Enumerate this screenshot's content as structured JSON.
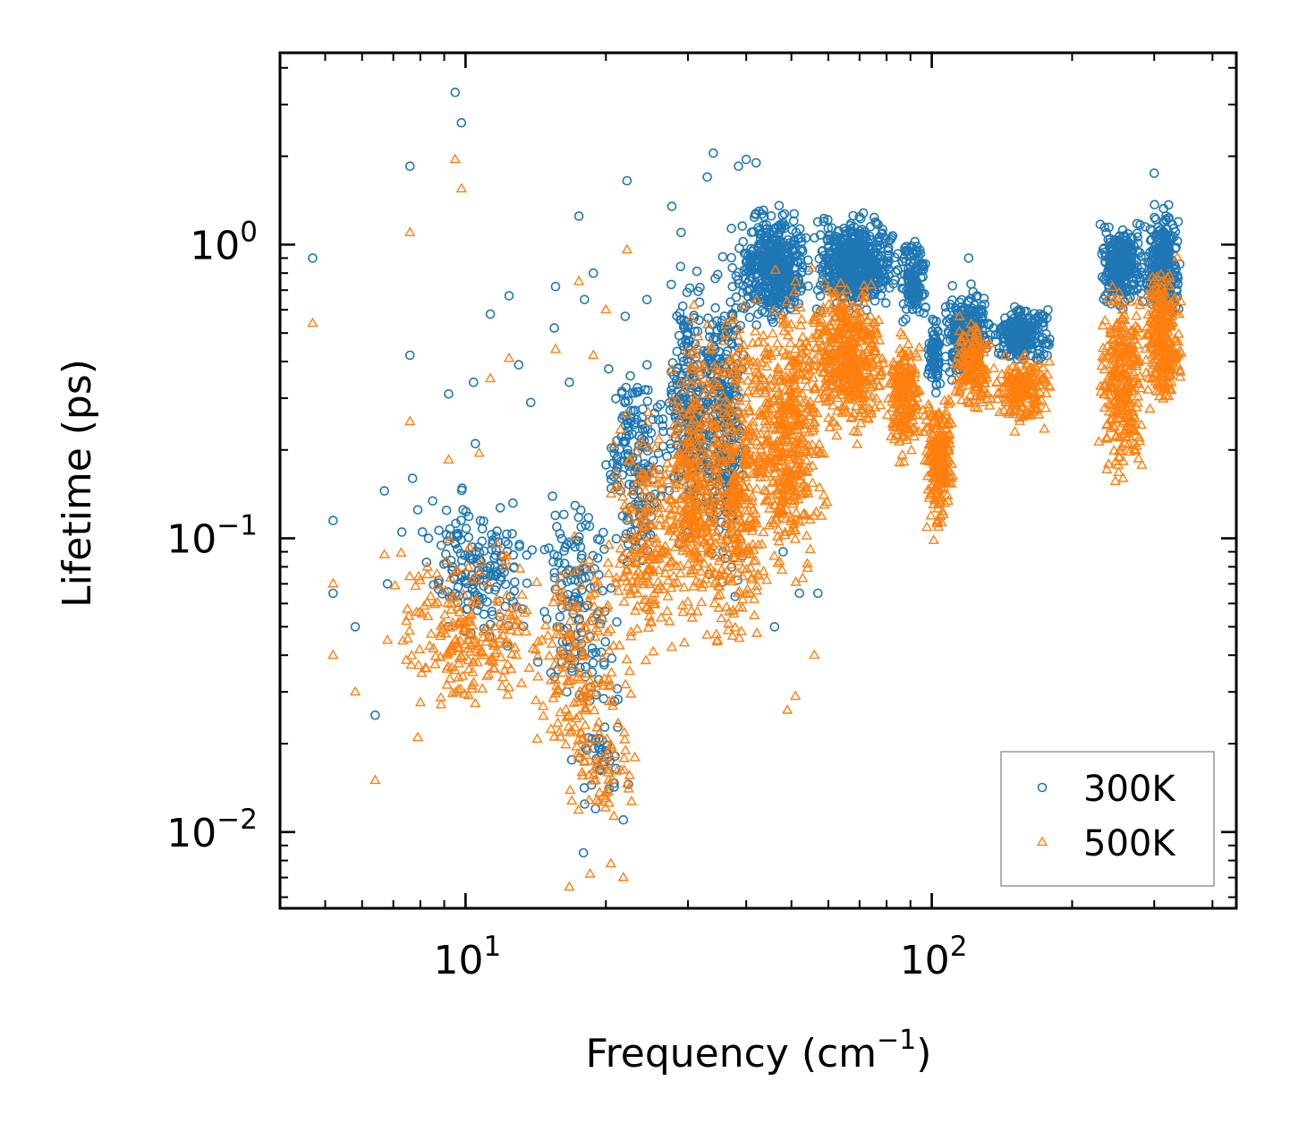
{
  "chart_data": {
    "type": "scatter",
    "title": "",
    "xlabel": "Frequency (cm",
    "xlabel_superscript": "−1",
    "xlabel_suffix": ")",
    "ylabel": "Lifetime (ps)",
    "xscale": "log",
    "yscale": "log",
    "xlim": [
      4.0,
      450.0
    ],
    "ylim": [
      0.0055,
      4.5
    ],
    "xticks": [
      {
        "value": 10,
        "base": "10",
        "exponent": "1"
      },
      {
        "value": 100,
        "base": "10",
        "exponent": "2"
      }
    ],
    "yticks": [
      {
        "value": 0.01,
        "base": "10",
        "exponent": "−2"
      },
      {
        "value": 0.1,
        "base": "10",
        "exponent": "−1"
      },
      {
        "value": 1,
        "base": "10",
        "exponent": "0"
      }
    ],
    "grid": false,
    "legend_position": "bottom-right",
    "series": [
      {
        "name": "300K",
        "color": "#1f77b4",
        "marker": "circle-open",
        "outliers": [
          [
            4.7,
            0.9
          ],
          [
            5.2,
            0.115
          ],
          [
            5.2,
            0.065
          ],
          [
            5.8,
            0.05
          ],
          [
            6.4,
            0.025
          ],
          [
            6.7,
            0.145
          ],
          [
            6.8,
            0.07
          ],
          [
            7.3,
            0.105
          ],
          [
            7.6,
            1.85
          ],
          [
            7.6,
            0.42
          ],
          [
            7.7,
            0.16
          ],
          [
            7.9,
            0.125
          ],
          [
            9.2,
            0.31
          ],
          [
            9.5,
            3.3
          ],
          [
            9.8,
            2.6
          ],
          [
            10.4,
            0.34
          ],
          [
            10.5,
            0.21
          ],
          [
            11.3,
            0.58
          ],
          [
            12.4,
            0.67
          ],
          [
            13.0,
            0.39
          ],
          [
            13.8,
            0.29
          ],
          [
            15.6,
            0.72
          ],
          [
            15.5,
            0.52
          ],
          [
            16.7,
            0.34
          ],
          [
            17.5,
            1.25
          ],
          [
            18.0,
            0.65
          ],
          [
            18.8,
            0.8
          ],
          [
            22.2,
            1.65
          ],
          [
            22.0,
            0.57
          ],
          [
            17.9,
            0.0085
          ],
          [
            19.0,
            0.012
          ],
          [
            20.3,
            0.014
          ],
          [
            21.8,
            0.011
          ],
          [
            24.5,
            0.65
          ],
          [
            27.7,
            1.35
          ],
          [
            29.0,
            1.1
          ],
          [
            33.0,
            1.7
          ],
          [
            34.0,
            2.05
          ],
          [
            38.5,
            1.85
          ],
          [
            40.0,
            1.95
          ],
          [
            42.0,
            1.9
          ],
          [
            46.0,
            0.05
          ],
          [
            48.0,
            0.09
          ],
          [
            52.0,
            0.065
          ],
          [
            57.0,
            0.065
          ],
          [
            120.0,
            0.9
          ],
          [
            300.0,
            1.75
          ]
        ],
        "clusters": [
          {
            "x": [
              8.0,
              14.0
            ],
            "y": [
              0.035,
              0.17
            ],
            "count": 170
          },
          {
            "x": [
              14.0,
              22.0
            ],
            "y": [
              0.018,
              0.22
            ],
            "count": 150
          },
          {
            "x": [
              16.5,
              22.5
            ],
            "y": [
              0.012,
              0.03
            ],
            "count": 35
          },
          {
            "x": [
              20.0,
              27.0
            ],
            "y": [
              0.06,
              0.55
            ],
            "count": 180
          },
          {
            "x": [
              27.0,
              34.0
            ],
            "y": [
              0.08,
              1.0
            ],
            "count": 250
          },
          {
            "x": [
              32.0,
              40.0
            ],
            "y": [
              0.05,
              1.3
            ],
            "count": 300
          },
          {
            "x": [
              38.0,
              55.0
            ],
            "y": [
              0.5,
              1.45
            ],
            "count": 450
          },
          {
            "x": [
              55.0,
              85.0
            ],
            "y": [
              0.55,
              1.35
            ],
            "count": 500
          },
          {
            "x": [
              85.0,
              98.0
            ],
            "y": [
              0.5,
              1.15
            ],
            "count": 130
          },
          {
            "x": [
              98.0,
              105.0
            ],
            "y": [
              0.28,
              0.62
            ],
            "count": 80
          },
          {
            "x": [
              105.0,
              135.0
            ],
            "y": [
              0.33,
              0.78
            ],
            "count": 230
          },
          {
            "x": [
              135.0,
              182.0
            ],
            "y": [
              0.38,
              0.65
            ],
            "count": 230
          },
          {
            "x": [
              228.0,
              285.0
            ],
            "y": [
              0.55,
              1.3
            ],
            "count": 280
          },
          {
            "x": [
              285.0,
              345.0
            ],
            "y": [
              0.5,
              1.45
            ],
            "count": 300
          }
        ]
      },
      {
        "name": "500K",
        "color": "#ff7f0e",
        "marker": "triangle-open",
        "outliers": [
          [
            4.7,
            0.54
          ],
          [
            5.2,
            0.07
          ],
          [
            5.2,
            0.04
          ],
          [
            5.8,
            0.03
          ],
          [
            6.4,
            0.015
          ],
          [
            6.7,
            0.088
          ],
          [
            6.8,
            0.045
          ],
          [
            7.6,
            1.1
          ],
          [
            7.6,
            0.25
          ],
          [
            7.9,
            0.021
          ],
          [
            9.2,
            0.185
          ],
          [
            9.5,
            1.95
          ],
          [
            9.8,
            1.55
          ],
          [
            10.7,
            0.195
          ],
          [
            11.3,
            0.35
          ],
          [
            12.4,
            0.41
          ],
          [
            15.6,
            0.44
          ],
          [
            17.5,
            0.75
          ],
          [
            18.8,
            0.42
          ],
          [
            20.0,
            0.6
          ],
          [
            22.2,
            0.96
          ],
          [
            16.7,
            0.0065
          ],
          [
            18.5,
            0.0072
          ],
          [
            20.5,
            0.0078
          ],
          [
            21.8,
            0.007
          ],
          [
            49.0,
            0.026
          ],
          [
            51.0,
            0.029
          ],
          [
            56.0,
            0.04
          ],
          [
            125.0,
            0.5
          ]
        ],
        "clusters": [
          {
            "x": [
              7.0,
              15.0
            ],
            "y": [
              0.02,
              0.11
            ],
            "count": 220
          },
          {
            "x": [
              14.0,
              22.0
            ],
            "y": [
              0.012,
              0.13
            ],
            "count": 160
          },
          {
            "x": [
              16.5,
              23.5
            ],
            "y": [
              0.0085,
              0.03
            ],
            "count": 60
          },
          {
            "x": [
              20.0,
              30.0
            ],
            "y": [
              0.025,
              0.4
            ],
            "count": 220
          },
          {
            "x": [
              27.0,
              35.0
            ],
            "y": [
              0.035,
              0.65
            ],
            "count": 280
          },
          {
            "x": [
              32.0,
              45.0
            ],
            "y": [
              0.028,
              0.8
            ],
            "count": 380
          },
          {
            "x": [
              40.0,
              60.0
            ],
            "y": [
              0.06,
              0.9
            ],
            "count": 480
          },
          {
            "x": [
              55.0,
              80.0
            ],
            "y": [
              0.2,
              0.9
            ],
            "count": 450
          },
          {
            "x": [
              80.0,
              95.0
            ],
            "y": [
              0.17,
              0.55
            ],
            "count": 200
          },
          {
            "x": [
              95.0,
              112.0
            ],
            "y": [
              0.095,
              0.38
            ],
            "count": 220
          },
          {
            "x": [
              112.0,
              135.0
            ],
            "y": [
              0.24,
              0.58
            ],
            "count": 180
          },
          {
            "x": [
              135.0,
              182.0
            ],
            "y": [
              0.22,
              0.46
            ],
            "count": 180
          },
          {
            "x": [
              228.0,
              285.0
            ],
            "y": [
              0.14,
              0.85
            ],
            "count": 300
          },
          {
            "x": [
              285.0,
              345.0
            ],
            "y": [
              0.24,
              1.0
            ],
            "count": 300
          }
        ]
      }
    ]
  }
}
